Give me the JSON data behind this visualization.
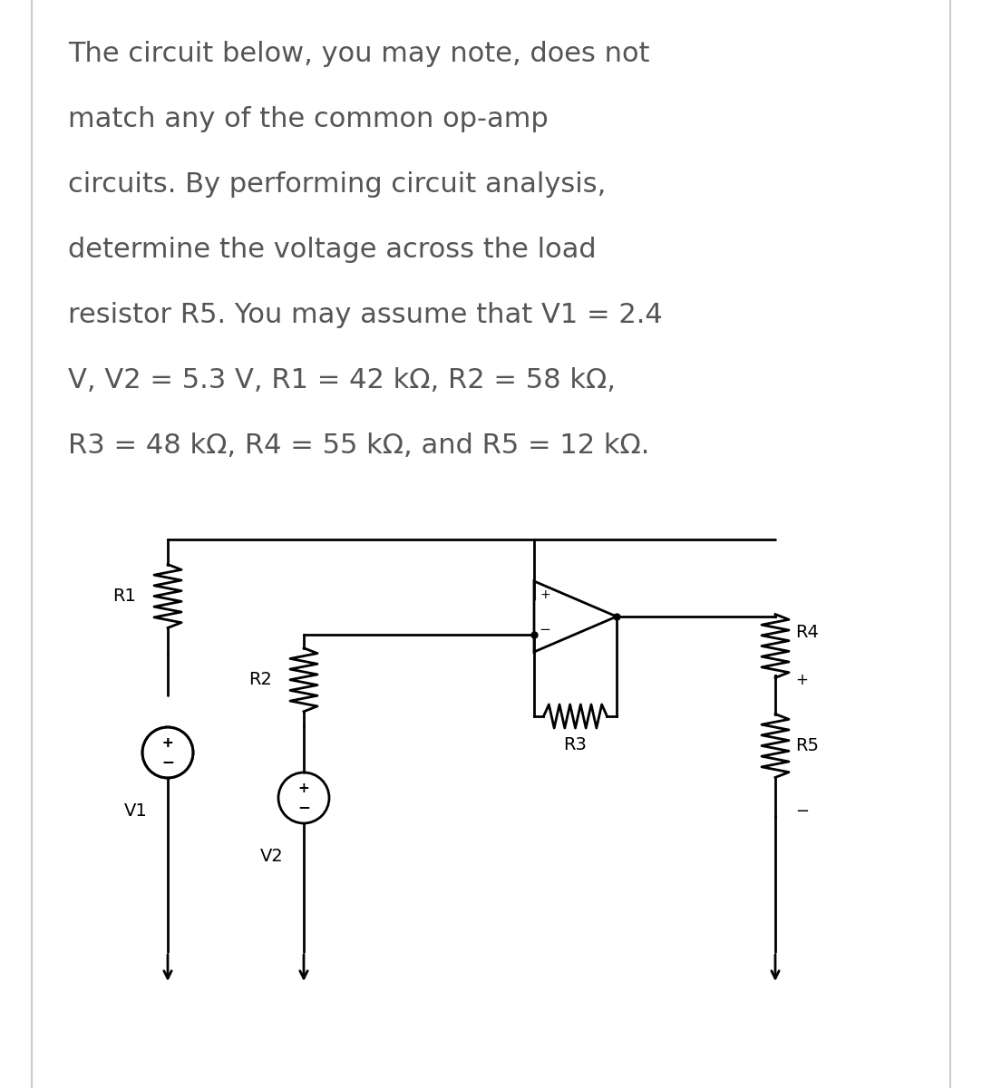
{
  "title_text": "The circuit below, you may note, does not\nmatch any of the common op-amp\ncircuits. By performing circuit analysis,\ndetermine the voltage across the load\nresistor R5. You may assume that V1 = 2.4\nV, V2 = 5.3 V, R1 = 42 kΩ, R2 = 58 kΩ,\nR3 = 48 kΩ, R4 = 55 kΩ, and R5 = 12 kΩ.",
  "bg_color": "#ffffff",
  "line_color": "#000000",
  "text_color": "#555555",
  "font_size_body": 22,
  "font_size_label": 14
}
